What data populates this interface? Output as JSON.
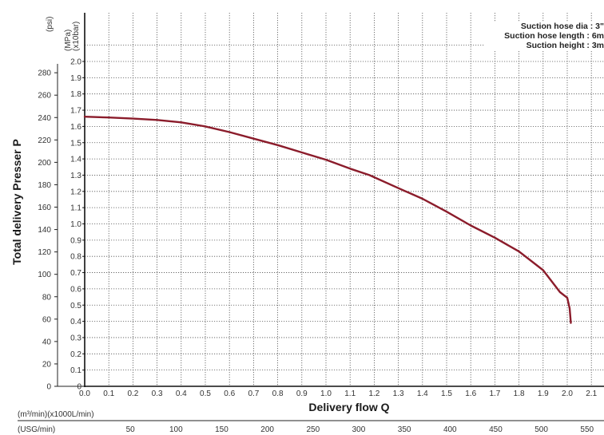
{
  "chart_data": {
    "type": "line",
    "title": "",
    "xlabel": "Delivery flow Q",
    "ylabel": "Total delivery Presser P",
    "xlim": [
      0,
      2.2
    ],
    "ylim": [
      0,
      2.0
    ],
    "grid": true,
    "x_ticks": [
      "0.0",
      "0.1",
      "0.2",
      "0.3",
      "0.4",
      "0.5",
      "0.6",
      "0.7",
      "0.8",
      "0.9",
      "1.0",
      "1.1",
      "1.2",
      "1.3",
      "1.4",
      "1.5",
      "1.6",
      "1.7",
      "1.8",
      "1.9",
      "2.0",
      "2.1"
    ],
    "y_ticks_mpa": [
      "0",
      "0.1",
      "0.2",
      "0.3",
      "0.4",
      "0.5",
      "0.6",
      "0.7",
      "0.8",
      "0.9",
      "1.0",
      "1.1",
      "1.2",
      "1.3",
      "1.4",
      "1.5",
      "1.6",
      "1.7",
      "1.8",
      "1.9",
      "2.0"
    ],
    "psi_ticks": [
      "0",
      "20",
      "40",
      "60",
      "80",
      "100",
      "120",
      "140",
      "160",
      "180",
      "200",
      "220",
      "240",
      "260",
      "280"
    ],
    "usg_ticks": [
      "50",
      "100",
      "150",
      "200",
      "250",
      "300",
      "350",
      "400",
      "450",
      "500",
      "550"
    ],
    "units": {
      "psi": "(psi)",
      "mpa": "(MPa)",
      "bar": "(x10bar)",
      "m3": "(m³/min)(x1000L/min)",
      "usg": "(USG/min)"
    },
    "annotations": [
      "Suction hose dia : 3\"",
      "Suction hose length : 6m",
      "Suction height : 3m"
    ],
    "series": [
      {
        "color": "#8b1c2b",
        "points": [
          [
            0.0,
            1.66
          ],
          [
            0.1,
            1.655
          ],
          [
            0.2,
            1.648
          ],
          [
            0.3,
            1.64
          ],
          [
            0.4,
            1.625
          ],
          [
            0.5,
            1.6
          ],
          [
            0.6,
            1.565
          ],
          [
            0.7,
            1.525
          ],
          [
            0.8,
            1.485
          ],
          [
            0.9,
            1.44
          ],
          [
            1.0,
            1.395
          ],
          [
            1.1,
            1.34
          ],
          [
            1.18,
            1.3
          ],
          [
            1.3,
            1.22
          ],
          [
            1.4,
            1.155
          ],
          [
            1.5,
            1.075
          ],
          [
            1.6,
            0.99
          ],
          [
            1.7,
            0.915
          ],
          [
            1.8,
            0.83
          ],
          [
            1.9,
            0.715
          ],
          [
            1.97,
            0.58
          ],
          [
            2.0,
            0.545
          ],
          [
            2.01,
            0.48
          ],
          [
            2.015,
            0.39
          ]
        ]
      }
    ]
  }
}
